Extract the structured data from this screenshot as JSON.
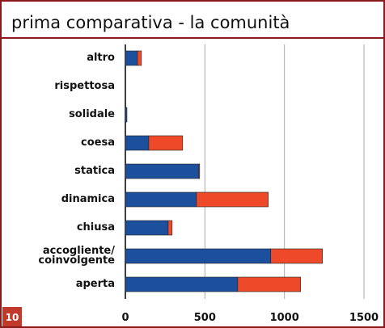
{
  "page_number": "10",
  "chart_data": {
    "type": "stacked_barh",
    "title": "prima comparativa - la comunità",
    "categories": [
      "altro",
      "rispettosa",
      "solidale",
      "coesa",
      "statica",
      "dinamica",
      "chiusa",
      "accogliente/\ncoinvolgente",
      "aperta"
    ],
    "series": [
      {
        "color": "#1c4f9c",
        "values": [
          76,
          0,
          10,
          147,
          462,
          447,
          269,
          914,
          706
        ]
      },
      {
        "color": "#ee4a2a",
        "values": [
          25,
          0,
          0,
          213,
          5,
          451,
          25,
          325,
          396
        ]
      }
    ],
    "xlim": [
      0,
      1500
    ],
    "xticks": [
      0,
      500,
      1000,
      1500
    ],
    "grid": true
  }
}
